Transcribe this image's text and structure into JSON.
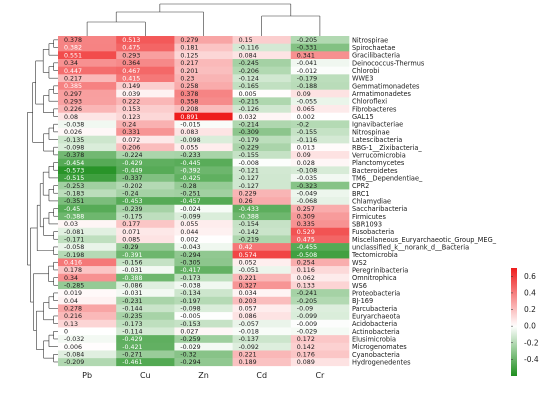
{
  "chart_data": {
    "type": "heatmap",
    "columns": [
      "Pb",
      "Cu",
      "Zn",
      "Cd",
      "Cr"
    ],
    "rows": [
      {
        "name": "Nitrospirae",
        "values": [
          0.378,
          0.513,
          0.279,
          0.15,
          -0.205
        ]
      },
      {
        "name": "Spirochaetae",
        "values": [
          0.382,
          0.475,
          0.181,
          -0.116,
          -0.331
        ]
      },
      {
        "name": "Gracilibacteria",
        "values": [
          0.551,
          0.293,
          0.125,
          0.084,
          0.341
        ]
      },
      {
        "name": "Deinococcus-Thermus",
        "values": [
          0.34,
          0.364,
          0.217,
          -0.245,
          -0.041
        ]
      },
      {
        "name": "Chlorobi",
        "values": [
          0.447,
          0.467,
          0.201,
          -0.206,
          -0.012
        ]
      },
      {
        "name": "WWE3",
        "values": [
          0.217,
          0.415,
          0.23,
          -0.124,
          -0.179
        ]
      },
      {
        "name": "Gemmatimonadetes",
        "values": [
          0.385,
          0.149,
          0.258,
          -0.165,
          -0.188
        ]
      },
      {
        "name": "Armatimonadetes",
        "values": [
          0.297,
          0.039,
          0.378,
          0.005,
          0.09
        ]
      },
      {
        "name": "Chloroflexi",
        "values": [
          0.293,
          0.222,
          0.358,
          -0.215,
          -0.055
        ]
      },
      {
        "name": "Fibrobacteres",
        "values": [
          0.226,
          0.153,
          0.208,
          -0.126,
          0.065
        ]
      },
      {
        "name": "GAL15",
        "values": [
          0.08,
          0.123,
          0.891,
          0.032,
          0.002
        ]
      },
      {
        "name": "Ignavibacteriae",
        "values": [
          -0.038,
          0.24,
          -0.015,
          -0.214,
          -0.2
        ]
      },
      {
        "name": "Nitrospinae",
        "values": [
          0.026,
          0.331,
          0.083,
          -0.309,
          -0.155
        ]
      },
      {
        "name": "Latescibacteria",
        "values": [
          -0.135,
          0.072,
          -0.098,
          -0.179,
          -0.116
        ]
      },
      {
        "name": "RBG-1__Zixibacteria_",
        "values": [
          -0.098,
          0.206,
          0.055,
          -0.229,
          0.013
        ]
      },
      {
        "name": "Verrucomicrobia",
        "values": [
          -0.378,
          -0.224,
          -0.233,
          -0.155,
          0.09
        ]
      },
      {
        "name": "Planctomycetes",
        "values": [
          -0.454,
          -0.429,
          -0.445,
          -0.008,
          0.028
        ]
      },
      {
        "name": "Bacteroidetes",
        "values": [
          -0.573,
          -0.449,
          -0.392,
          -0.121,
          -0.108
        ]
      },
      {
        "name": "TM6__Dependentiae_",
        "values": [
          -0.515,
          -0.337,
          -0.425,
          -0.127,
          -0.035
        ]
      },
      {
        "name": "CPR2",
        "values": [
          -0.253,
          -0.202,
          -0.28,
          -0.127,
          -0.323
        ]
      },
      {
        "name": "BRC1",
        "values": [
          -0.183,
          -0.24,
          -0.251,
          0.229,
          -0.049
        ]
      },
      {
        "name": "Chlamydiae",
        "values": [
          -0.351,
          -0.453,
          -0.457,
          0.26,
          -0.068
        ]
      },
      {
        "name": "Saccharibacteria",
        "values": [
          -0.45,
          -0.239,
          -0.024,
          -0.433,
          0.257
        ]
      },
      {
        "name": "Firmicutes",
        "values": [
          -0.388,
          -0.175,
          -0.099,
          -0.388,
          0.309
        ]
      },
      {
        "name": "SBR1093",
        "values": [
          0.03,
          0.177,
          0.055,
          -0.154,
          0.335
        ]
      },
      {
        "name": "Fusobacteria",
        "values": [
          -0.081,
          0.071,
          0.044,
          -0.142,
          0.529
        ]
      },
      {
        "name": "Miscellaneous_Euryarchaeotic_Group_MEG_",
        "values": [
          -0.171,
          0.085,
          0.002,
          -0.219,
          0.475
        ]
      },
      {
        "name": "unclassified_k__norank_d__Bacteria",
        "values": [
          -0.058,
          -0.29,
          -0.043,
          0.42,
          -0.455
        ]
      },
      {
        "name": "Tectomicrobia",
        "values": [
          -0.198,
          -0.391,
          -0.294,
          0.574,
          -0.508
        ]
      },
      {
        "name": "WS2",
        "values": [
          0.416,
          -0.156,
          -0.305,
          0.052,
          0.254
        ]
      },
      {
        "name": "Peregrinibacteria",
        "values": [
          0.178,
          -0.031,
          -0.417,
          -0.051,
          0.116
        ]
      },
      {
        "name": "Omnitrophica",
        "values": [
          0.34,
          -0.388,
          -0.173,
          0.221,
          0.062
        ]
      },
      {
        "name": "WS6",
        "values": [
          -0.285,
          -0.086,
          -0.038,
          0.327,
          0.133
        ]
      },
      {
        "name": "Proteobacteria",
        "values": [
          0.019,
          -0.031,
          -0.134,
          0.034,
          -0.241
        ]
      },
      {
        "name": "BJ-169",
        "values": [
          0.04,
          -0.231,
          -0.197,
          0.203,
          -0.205
        ]
      },
      {
        "name": "Parcubacteria",
        "values": [
          0.278,
          -0.144,
          -0.098,
          0.057,
          -0.09
        ]
      },
      {
        "name": "Euryarchaeota",
        "values": [
          0.216,
          -0.235,
          -0.005,
          0.086,
          -0.099
        ]
      },
      {
        "name": "Acidobacteria",
        "values": [
          0.13,
          -0.173,
          -0.153,
          -0.057,
          -0.009
        ]
      },
      {
        "name": "Actinobacteria",
        "values": [
          0,
          -0.114,
          0.027,
          -0.018,
          -0.029
        ]
      },
      {
        "name": "Elusimicrobia",
        "values": [
          -0.032,
          -0.429,
          -0.259,
          -0.137,
          0.172
        ]
      },
      {
        "name": "Microgenomates",
        "values": [
          0.006,
          -0.421,
          -0.029,
          -0.092,
          0.142
        ]
      },
      {
        "name": "Cyanobacteria",
        "values": [
          -0.084,
          -0.271,
          -0.32,
          0.221,
          0.176
        ]
      },
      {
        "name": "Hydrogenedentes",
        "values": [
          -0.209,
          -0.461,
          -0.294,
          0.189,
          0.089
        ]
      }
    ],
    "legend": {
      "ticks": [
        0.6,
        0.4,
        0.2,
        0.0,
        -0.2,
        -0.4
      ],
      "tick_labels": [
        "0.6",
        "0.4",
        "0.2",
        "0.0",
        "-0.2",
        "-0.4"
      ],
      "range": [
        -0.6,
        0.7
      ],
      "colors": {
        "low": "#1f8f1f",
        "mid": "#ffffff",
        "high": "#ee1c1c"
      }
    }
  }
}
